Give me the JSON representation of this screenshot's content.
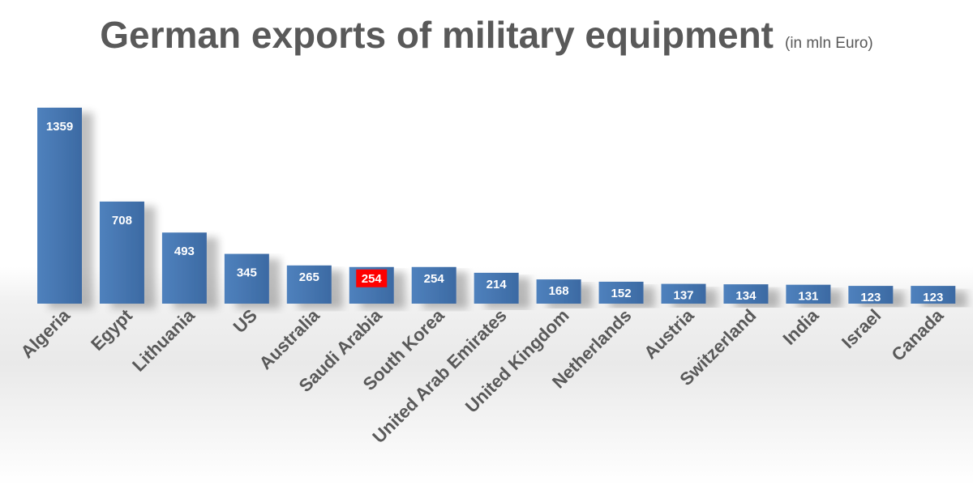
{
  "chart_data": {
    "type": "bar",
    "title": "German exports of military equipment",
    "subtitle": "(in mln Euro)",
    "xlabel": "",
    "ylabel": "",
    "ylim": [
      0,
      1359
    ],
    "grid": false,
    "legend": "none",
    "categories": [
      "Algeria",
      "Egypt",
      "Lithuania",
      "US",
      "Australia",
      "Saudi Arabia",
      "South Korea",
      "United Arab Emirates",
      "United Kingdom",
      "Netherlands",
      "Austria",
      "Switzerland",
      "India",
      "Israel",
      "Canada"
    ],
    "values": [
      1359,
      708,
      493,
      345,
      265,
      254,
      254,
      214,
      168,
      152,
      137,
      134,
      131,
      123,
      123
    ],
    "highlight_index": 5,
    "colors": {
      "bar": "#4f81bd",
      "bar_dark": "#3c6aa3",
      "highlight_label_bg": "#ff0000",
      "label_text": "#ffffff",
      "axis_text": "#595959",
      "title_text": "#595959"
    }
  }
}
